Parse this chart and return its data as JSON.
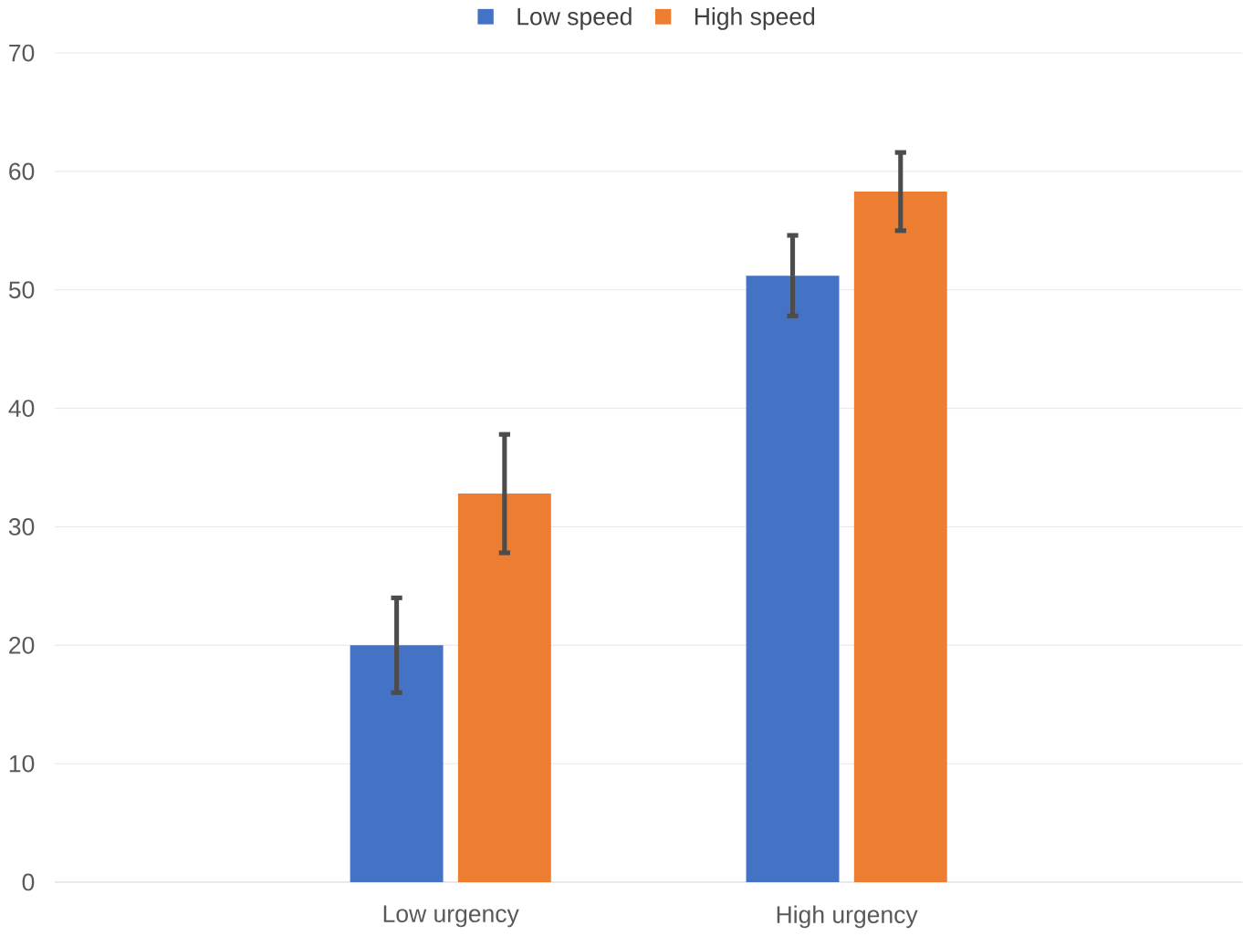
{
  "chart_data": {
    "type": "bar",
    "categories": [
      "Low urgency",
      "High urgency"
    ],
    "series": [
      {
        "name": "Low speed",
        "color": "#4472c4",
        "values": [
          20,
          51.2
        ],
        "errors": [
          4,
          3.4
        ]
      },
      {
        "name": "High speed",
        "color": "#ed7d31",
        "values": [
          32.8,
          58.3
        ],
        "errors": [
          5,
          3.3
        ]
      }
    ],
    "ylim": [
      0,
      70
    ],
    "yticks": [
      0,
      10,
      20,
      30,
      40,
      50,
      60,
      70
    ],
    "grid": "y",
    "legend": "top"
  }
}
